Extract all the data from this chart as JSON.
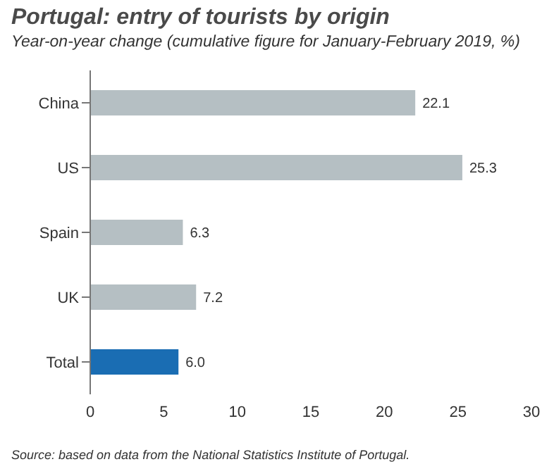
{
  "chart_data": {
    "type": "bar",
    "orientation": "horizontal",
    "title": "Portugal: entry of tourists by origin",
    "subtitle": "Year-on-year change (cumulative figure for January-February 2019, %)",
    "categories": [
      "China",
      "US",
      "Spain",
      "UK",
      "Total"
    ],
    "values": [
      22.1,
      25.3,
      6.3,
      7.2,
      6.0
    ],
    "value_labels": [
      "22.1",
      "25.3",
      "6.3",
      "7.2",
      "6.0"
    ],
    "colors": [
      "#b5bfc3",
      "#b5bfc3",
      "#b5bfc3",
      "#b5bfc3",
      "#1a6db3"
    ],
    "xlim": [
      0,
      30
    ],
    "xticks": [
      0,
      5,
      10,
      15,
      20,
      25,
      30
    ],
    "annotations": [
      "Source: based on data from the National Statistics Institute of Portugal."
    ]
  }
}
